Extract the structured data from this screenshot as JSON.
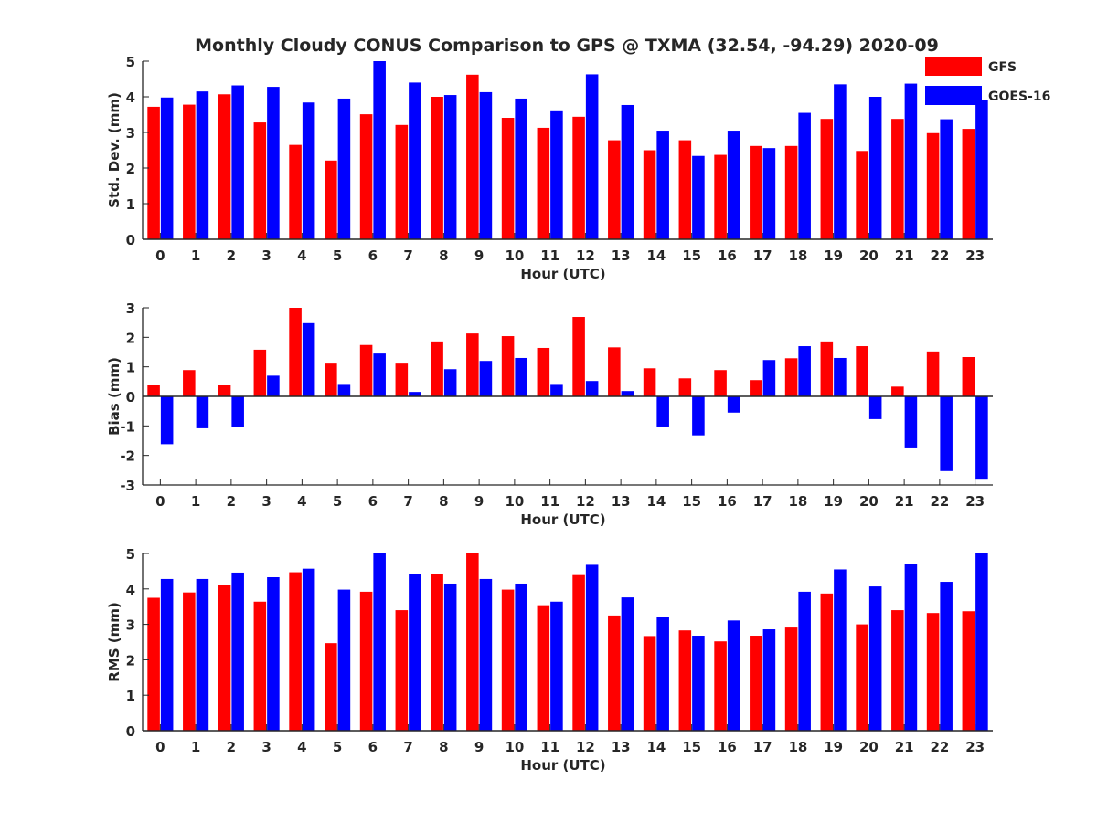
{
  "figure": {
    "title": "Monthly Cloudy CONUS Comparison to GPS @ TXMA (32.54, -94.29) 2020-09"
  },
  "legend": {
    "placement": "top-right",
    "entries": [
      {
        "label": "GFS",
        "color": "#ff0000"
      },
      {
        "label": "GOES-16",
        "color": "#0000ff"
      }
    ]
  },
  "chart_data": [
    {
      "type": "bar",
      "ylabel": "Std. Dev. (mm)",
      "xlabel": "Hour (UTC)",
      "ylim": [
        0,
        5
      ],
      "yticks": [
        0,
        1,
        2,
        3,
        4,
        5
      ],
      "categories": [
        "0",
        "1",
        "2",
        "3",
        "4",
        "5",
        "6",
        "7",
        "8",
        "9",
        "10",
        "11",
        "12",
        "13",
        "14",
        "15",
        "16",
        "17",
        "18",
        "19",
        "20",
        "21",
        "22",
        "23"
      ],
      "series": [
        {
          "name": "GFS",
          "color": "#ff0000",
          "values": [
            3.72,
            3.78,
            4.07,
            3.28,
            2.65,
            2.21,
            3.51,
            3.21,
            4.0,
            4.62,
            3.41,
            3.13,
            3.44,
            2.78,
            2.5,
            2.78,
            2.37,
            2.62,
            2.62,
            3.38,
            2.48,
            3.38,
            2.98,
            3.1
          ]
        },
        {
          "name": "GOES-16",
          "color": "#0000ff",
          "values": [
            3.98,
            4.15,
            4.32,
            4.28,
            3.84,
            3.95,
            5.0,
            4.4,
            4.05,
            4.13,
            3.95,
            3.62,
            4.63,
            3.77,
            3.05,
            2.34,
            3.05,
            2.56,
            3.55,
            4.35,
            4.0,
            4.37,
            3.37,
            3.9
          ]
        }
      ]
    },
    {
      "type": "bar",
      "ylabel": "Bias (mm)",
      "xlabel": "Hour (UTC)",
      "ylim": [
        -3,
        3
      ],
      "yticks": [
        -3,
        -2,
        -1,
        0,
        1,
        2,
        3
      ],
      "categories": [
        "0",
        "1",
        "2",
        "3",
        "4",
        "5",
        "6",
        "7",
        "8",
        "9",
        "10",
        "11",
        "12",
        "13",
        "14",
        "15",
        "16",
        "17",
        "18",
        "19",
        "20",
        "21",
        "22",
        "23"
      ],
      "series": [
        {
          "name": "GFS",
          "color": "#ff0000",
          "values": [
            0.39,
            0.89,
            0.39,
            1.58,
            3.0,
            1.14,
            1.74,
            1.14,
            1.86,
            2.13,
            2.04,
            1.64,
            2.69,
            1.66,
            0.95,
            0.61,
            0.89,
            0.55,
            1.29,
            1.86,
            1.7,
            0.33,
            1.52,
            1.33
          ]
        },
        {
          "name": "GOES-16",
          "color": "#0000ff",
          "values": [
            -1.62,
            -1.08,
            -1.05,
            0.7,
            2.48,
            0.42,
            1.45,
            0.15,
            0.92,
            1.2,
            1.3,
            0.42,
            0.52,
            0.18,
            -1.02,
            -1.32,
            -0.55,
            1.23,
            1.7,
            1.3,
            -0.77,
            -1.73,
            -2.53,
            -2.82
          ]
        }
      ]
    },
    {
      "type": "bar",
      "ylabel": "RMS (mm)",
      "xlabel": "Hour (UTC)",
      "ylim": [
        0,
        5
      ],
      "yticks": [
        0,
        1,
        2,
        3,
        4,
        5
      ],
      "categories": [
        "0",
        "1",
        "2",
        "3",
        "4",
        "5",
        "6",
        "7",
        "8",
        "9",
        "10",
        "11",
        "12",
        "13",
        "14",
        "15",
        "16",
        "17",
        "18",
        "19",
        "20",
        "21",
        "22",
        "23"
      ],
      "series": [
        {
          "name": "GFS",
          "color": "#ff0000",
          "values": [
            3.75,
            3.9,
            4.1,
            3.64,
            4.47,
            2.47,
            3.92,
            3.4,
            4.42,
            5.0,
            3.98,
            3.54,
            4.39,
            3.25,
            2.67,
            2.83,
            2.52,
            2.68,
            2.91,
            3.87,
            3.0,
            3.4,
            3.32,
            3.37
          ]
        },
        {
          "name": "GOES-16",
          "color": "#0000ff",
          "values": [
            4.28,
            4.28,
            4.46,
            4.33,
            4.57,
            3.98,
            5.0,
            4.41,
            4.15,
            4.28,
            4.15,
            3.64,
            4.68,
            3.76,
            3.22,
            2.68,
            3.11,
            2.86,
            3.92,
            4.55,
            4.07,
            4.71,
            4.2,
            5.0
          ]
        }
      ]
    }
  ]
}
